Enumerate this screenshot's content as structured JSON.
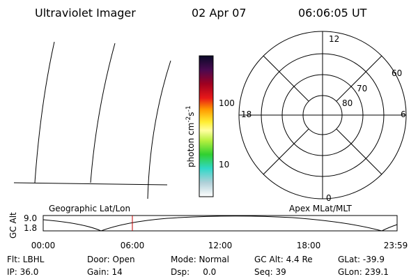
{
  "header": {
    "instrument": "Ultraviolet Imager",
    "date": "02 Apr 07",
    "time": "06:06:05 UT"
  },
  "colorbar": {
    "unit": [
      "photon cm",
      "-2",
      "s",
      "-1"
    ],
    "ticks": [
      "100",
      "10"
    ]
  },
  "polar": {
    "top": "12",
    "bottom": "0",
    "left": "18",
    "right": "6",
    "rings": [
      "60",
      "70",
      "80"
    ]
  },
  "timeline": {
    "left_label": "Geographic Lat/Lon",
    "right_label": "Apex MLat/MLT",
    "y_label": "GC Alt",
    "yticks": [
      "9.0",
      "1.8"
    ],
    "xticks": [
      "00:00",
      "06:00",
      "12:00",
      "18:00",
      "23:59"
    ]
  },
  "info": [
    [
      "Flt: LBHL",
      "Door: Open",
      "Mode: Normal",
      "GC Alt: 4.4 Re",
      "GLat: -39.9"
    ],
    [
      "IP: 36.0",
      "Gain: 14",
      "Dsp:     0.0",
      "Seq: 39",
      "GLon: 239.1"
    ]
  ]
}
